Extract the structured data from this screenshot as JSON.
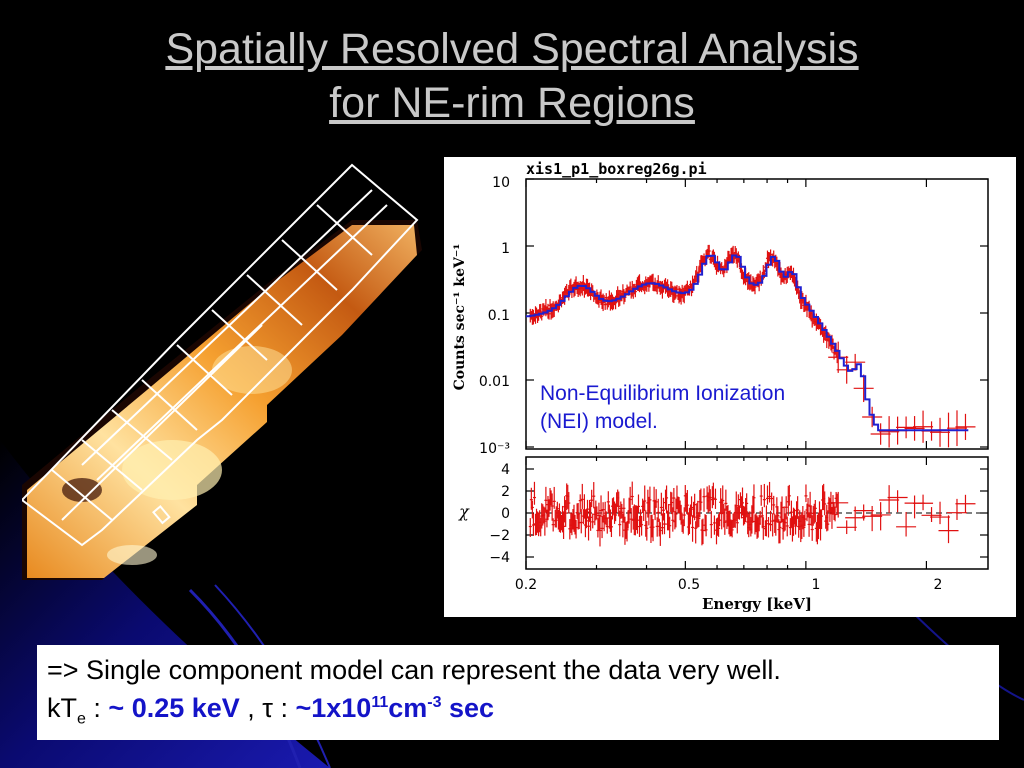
{
  "slide": {
    "title_line1": "Spatially Resolved Spectral Analysis",
    "title_line2": "for NE-rim Regions"
  },
  "spectrum": {
    "plot_title": "xis1_p1_boxreg26g.pi",
    "ylabel": "Counts sec⁻¹ keV⁻¹",
    "resid_label": "χ",
    "xlabel": "Energy [keV]",
    "yticks_top": [
      "10",
      "1",
      "0.1",
      "0.01",
      "10⁻³"
    ],
    "yticks_bottom": [
      "4",
      "2",
      "0",
      "−2",
      "−4"
    ],
    "xticks": [
      "0.2",
      "0.5",
      "1",
      "2"
    ]
  },
  "annotation": {
    "line1": "Non-Equilibrium Ionization",
    "line2": "(NEI) model."
  },
  "caption": {
    "line1": "=> Single component model can represent the data very well.",
    "kt_prefix": "kT",
    "kt_sub": "e",
    "kt_sep": " : ",
    "kt_value": "~ 0.25 keV",
    "tau_sep": " , τ : ",
    "tau_value": "~1x10",
    "tau_exp": "11",
    "tau_unit": "cm",
    "tau_unit_exp": "-3",
    "tau_tail": " sec"
  },
  "colors": {
    "background": "#000000",
    "accent_blue": "#1414c8",
    "data_red": "#e01010",
    "model_blue": "#2020d0",
    "title": "#c9c9c9"
  }
}
